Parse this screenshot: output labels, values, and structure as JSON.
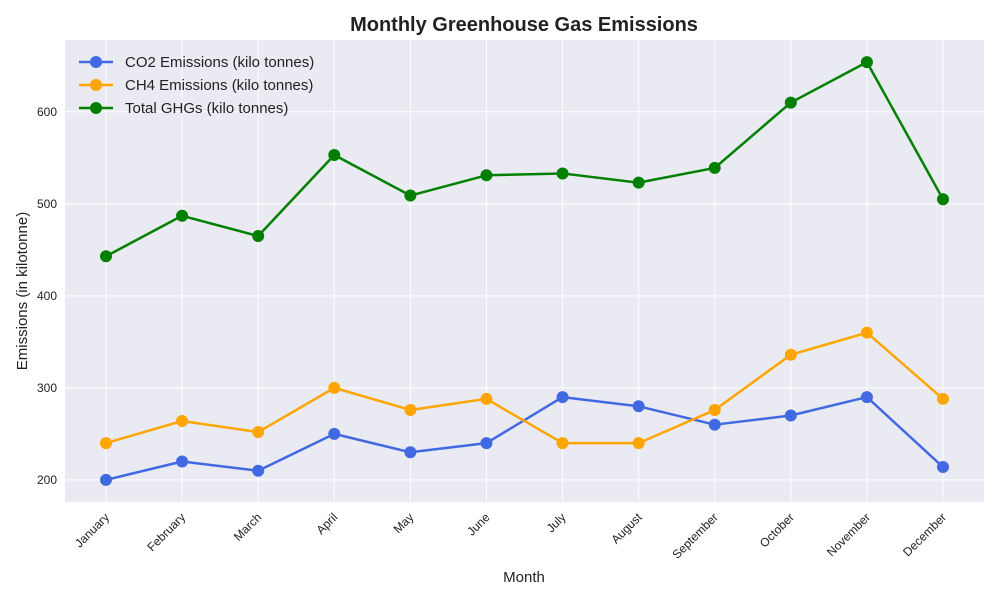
{
  "chart_data": {
    "type": "line",
    "title": "Monthly Greenhouse Gas Emissions",
    "xlabel": "Month",
    "ylabel": "Emissions (in kilotonne)",
    "categories": [
      "January",
      "February",
      "March",
      "April",
      "May",
      "June",
      "July",
      "August",
      "September",
      "October",
      "November",
      "December"
    ],
    "ylim": [
      176,
      678
    ],
    "yticks": [
      200,
      300,
      400,
      500,
      600
    ],
    "grid": true,
    "legend_position": "top-left",
    "background": "#eaeaf2",
    "series": [
      {
        "name": "CO2 Emissions (kilo tonnes)",
        "color": "#4169e1",
        "values": [
          200,
          220,
          210,
          250,
          230,
          240,
          290,
          280,
          260,
          270,
          290,
          214
        ]
      },
      {
        "name": "CH4 Emissions (kilo tonnes)",
        "color": "#ffa500",
        "values": [
          240,
          264,
          252,
          300,
          276,
          288,
          240,
          240,
          276,
          336,
          360,
          288
        ]
      },
      {
        "name": "Total GHGs (kilo tonnes)",
        "color": "#008000",
        "values": [
          443,
          487,
          465,
          553,
          509,
          531,
          533,
          523,
          539,
          610,
          654,
          505
        ]
      }
    ]
  }
}
